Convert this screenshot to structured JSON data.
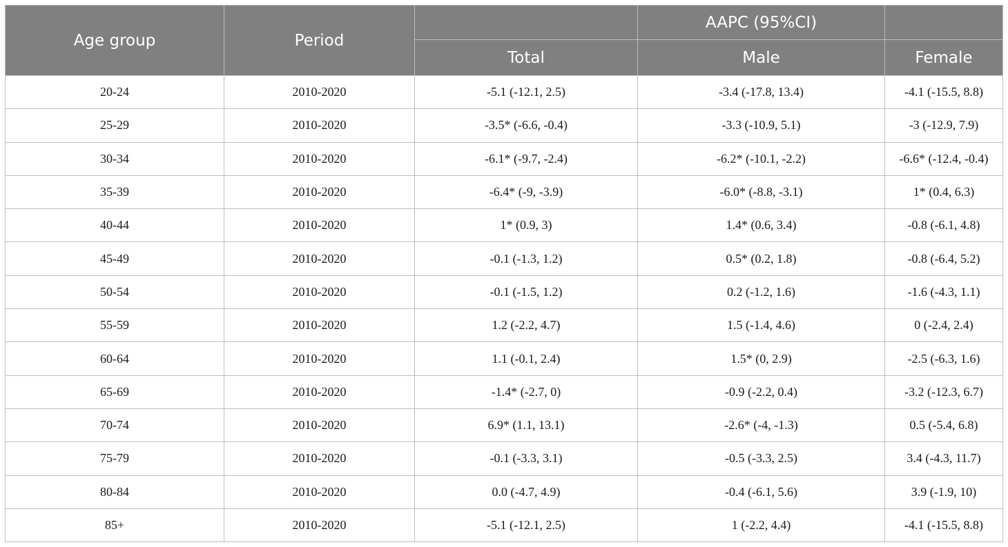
{
  "table": {
    "headers": {
      "age_group": "Age group",
      "period": "Period",
      "aapc": "AAPC (95%CI)",
      "total": "Total",
      "male": "Male",
      "female": "Female"
    },
    "rows": [
      {
        "age": "20-24",
        "period": "2010-2020",
        "total": "-5.1 (-12.1, 2.5)",
        "male": "-3.4 (-17.8, 13.4)",
        "female": "-4.1 (-15.5, 8.8)"
      },
      {
        "age": "25-29",
        "period": "2010-2020",
        "total": "-3.5* (-6.6, -0.4)",
        "male": "-3.3 (-10.9, 5.1)",
        "female": "-3 (-12.9, 7.9)"
      },
      {
        "age": "30-34",
        "period": "2010-2020",
        "total": "-6.1* (-9.7, -2.4)",
        "male": "-6.2* (-10.1, -2.2)",
        "female": "-6.6* (-12.4, -0.4)"
      },
      {
        "age": "35-39",
        "period": "2010-2020",
        "total": "-6.4* (-9, -3.9)",
        "male": "-6.0* (-8.8, -3.1)",
        "female": "1* (0.4, 6.3)"
      },
      {
        "age": "40-44",
        "period": "2010-2020",
        "total": "1* (0.9, 3)",
        "male": "1.4* (0.6, 3.4)",
        "female": "-0.8 (-6.1, 4.8)"
      },
      {
        "age": "45-49",
        "period": "2010-2020",
        "total": "-0.1 (-1.3, 1.2)",
        "male": "0.5* (0.2, 1.8)",
        "female": "-0.8 (-6.4, 5.2)"
      },
      {
        "age": "50-54",
        "period": "2010-2020",
        "total": "-0.1 (-1.5, 1.2)",
        "male": "0.2 (-1.2, 1.6)",
        "female": "-1.6 (-4.3, 1.1)"
      },
      {
        "age": "55-59",
        "period": "2010-2020",
        "total": "1.2 (-2.2, 4.7)",
        "male": "1.5 (-1.4, 4.6)",
        "female": "0 (-2.4, 2.4)"
      },
      {
        "age": "60-64",
        "period": "2010-2020",
        "total": "1.1 (-0.1, 2.4)",
        "male": "1.5* (0, 2.9)",
        "female": "-2.5 (-6.3, 1.6)"
      },
      {
        "age": "65-69",
        "period": "2010-2020",
        "total": "-1.4* (-2.7, 0)",
        "male": "-0.9 (-2.2, 0.4)",
        "female": "-3.2 (-12.3, 6.7)"
      },
      {
        "age": "70-74",
        "period": "2010-2020",
        "total": "6.9* (1.1, 13.1)",
        "male": "-2.6* (-4, -1.3)",
        "female": "0.5 (-5.4, 6.8)"
      },
      {
        "age": "75-79",
        "period": "2010-2020",
        "total": "-0.1 (-3.3, 3.1)",
        "male": "-0.5 (-3.3, 2.5)",
        "female": "3.4 (-4.3, 11.7)"
      },
      {
        "age": "80-84",
        "period": "2010-2020",
        "total": "0.0 (-4.7, 4.9)",
        "male": "-0.4 (-6.1, 5.6)",
        "female": "3.9 (-1.9, 10)"
      },
      {
        "age": "85+",
        "period": "2010-2020",
        "total": "-5.1 (-12.1, 2.5)",
        "male": "1 (-2.2, 4.4)",
        "female": "-4.1 (-15.5, 8.8)"
      }
    ]
  },
  "colors": {
    "header_bg": "#808080",
    "header_text": "#ffffff",
    "border": "#bdbdbd"
  }
}
